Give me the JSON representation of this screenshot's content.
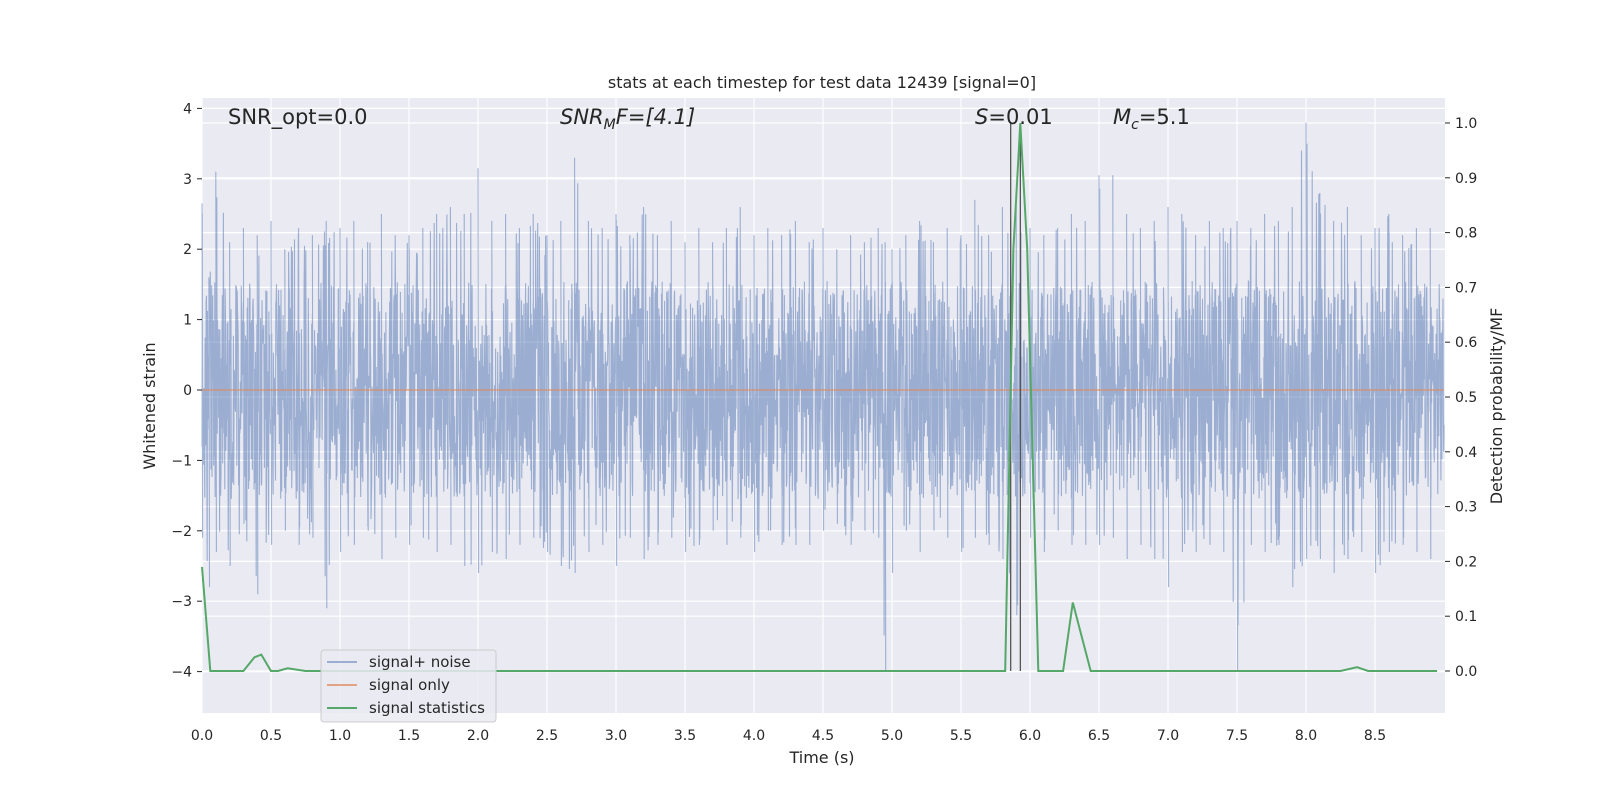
{
  "chart_data": {
    "type": "line",
    "title": "stats at each timestep for test data 12439 [signal=0]",
    "xlabel": "Time (s)",
    "ylabel": "Whitened strain",
    "y2label": "Detection probability/MF",
    "xlim": [
      0,
      9
    ],
    "ylim": [
      -4.4,
      4.2
    ],
    "y2lim": [
      -0.05,
      1.05
    ],
    "xticks": [
      "0.0",
      "0.5",
      "1.0",
      "1.5",
      "2.0",
      "2.5",
      "3.0",
      "3.5",
      "4.0",
      "4.5",
      "5.0",
      "5.5",
      "6.0",
      "6.5",
      "7.0",
      "7.5",
      "8.0",
      "8.5"
    ],
    "yticks": [
      "−4",
      "−3",
      "−2",
      "−1",
      "0",
      "1",
      "2",
      "3",
      "4"
    ],
    "y2ticks": [
      "0.0",
      "0.1",
      "0.2",
      "0.3",
      "0.4",
      "0.5",
      "0.6",
      "0.7",
      "0.8",
      "0.9",
      "1.0"
    ],
    "grid": true,
    "legend": {
      "position": "lower-left",
      "entries": [
        "signal+ noise",
        "signal only",
        "signal statistics"
      ]
    },
    "annotations": {
      "snr_opt": "SNR_opt=0.0",
      "snr_mf_main": "SNR",
      "snr_mf_sub": "M",
      "snr_mf_tail": "F=[4.1]",
      "s_main": "S",
      "s_value": "=0.01",
      "mc_main": "M",
      "mc_sub": "c",
      "mc_value": "=5.1"
    },
    "vlines": [
      5.86,
      5.93
    ],
    "series": [
      {
        "name": "signal+ noise",
        "color": "#4c72b0",
        "description_envelope": [
          [
            0.0,
            2.65,
            -2.1
          ],
          [
            0.05,
            1.6,
            -2.8
          ],
          [
            0.1,
            3.1,
            -2.3
          ],
          [
            0.2,
            2.1,
            -2.5
          ],
          [
            0.3,
            2.3,
            -1.9
          ],
          [
            0.4,
            2.2,
            -2.9
          ],
          [
            0.5,
            2.4,
            -2.2
          ],
          [
            0.6,
            2.0,
            -2.0
          ],
          [
            0.7,
            2.3,
            -2.2
          ],
          [
            0.8,
            2.2,
            -2.1
          ],
          [
            0.9,
            2.4,
            -3.1
          ],
          [
            1.0,
            2.3,
            -2.3
          ],
          [
            1.1,
            2.4,
            -2.2
          ],
          [
            1.2,
            2.1,
            -2.0
          ],
          [
            1.3,
            2.5,
            -2.4
          ],
          [
            1.4,
            2.2,
            -2.1
          ],
          [
            1.5,
            2.2,
            -2.2
          ],
          [
            1.6,
            2.3,
            -2.1
          ],
          [
            1.7,
            2.5,
            -2.3
          ],
          [
            1.8,
            2.6,
            -2.2
          ],
          [
            1.9,
            2.5,
            -2.5
          ],
          [
            2.0,
            3.15,
            -2.6
          ],
          [
            2.1,
            2.4,
            -2.3
          ],
          [
            2.2,
            2.5,
            -2.4
          ],
          [
            2.3,
            2.3,
            -2.2
          ],
          [
            2.4,
            2.5,
            -2.1
          ],
          [
            2.5,
            2.2,
            -2.3
          ],
          [
            2.6,
            2.4,
            -2.5
          ],
          [
            2.7,
            3.3,
            -2.6
          ],
          [
            2.8,
            2.4,
            -2.3
          ],
          [
            2.9,
            2.3,
            -2.2
          ],
          [
            3.0,
            2.5,
            -2.5
          ],
          [
            3.1,
            2.2,
            -2.1
          ],
          [
            3.2,
            2.6,
            -2.4
          ],
          [
            3.3,
            2.2,
            -2.2
          ],
          [
            3.4,
            2.4,
            -2.1
          ],
          [
            3.5,
            2.1,
            -2.3
          ],
          [
            3.6,
            2.3,
            -2.2
          ],
          [
            3.7,
            2.1,
            -2.0
          ],
          [
            3.8,
            2.3,
            -2.2
          ],
          [
            3.9,
            2.6,
            -2.1
          ],
          [
            4.0,
            2.2,
            -2.3
          ],
          [
            4.1,
            2.3,
            -2.0
          ],
          [
            4.2,
            2.2,
            -2.2
          ],
          [
            4.3,
            2.4,
            -2.2
          ],
          [
            4.4,
            2.1,
            -2.2
          ],
          [
            4.5,
            2.3,
            -2.0
          ],
          [
            4.6,
            2.0,
            -1.9
          ],
          [
            4.7,
            2.2,
            -2.2
          ],
          [
            4.8,
            2.1,
            -2.0
          ],
          [
            4.9,
            2.3,
            -2.1
          ],
          [
            4.95,
            2.1,
            -4.0
          ],
          [
            5.0,
            2.0,
            -2.6
          ],
          [
            5.1,
            2.2,
            -2.0
          ],
          [
            5.2,
            2.4,
            -2.3
          ],
          [
            5.3,
            2.1,
            -2.0
          ],
          [
            5.4,
            2.3,
            -2.1
          ],
          [
            5.5,
            2.2,
            -2.3
          ],
          [
            5.6,
            2.7,
            -2.1
          ],
          [
            5.7,
            2.2,
            -2.2
          ],
          [
            5.8,
            2.6,
            -2.4
          ],
          [
            5.9,
            2.6,
            -3.2
          ],
          [
            6.0,
            2.3,
            -2.1
          ],
          [
            6.1,
            2.2,
            -2.3
          ],
          [
            6.2,
            2.3,
            -2.0
          ],
          [
            6.3,
            2.5,
            -2.2
          ],
          [
            6.4,
            2.4,
            -2.2
          ],
          [
            6.5,
            3.05,
            -2.2
          ],
          [
            6.6,
            3.05,
            -2.1
          ],
          [
            6.7,
            2.5,
            -2.4
          ],
          [
            6.8,
            2.3,
            -2.2
          ],
          [
            6.9,
            2.4,
            -2.4
          ],
          [
            7.0,
            2.6,
            -2.8
          ],
          [
            7.1,
            2.5,
            -2.3
          ],
          [
            7.2,
            2.2,
            -2.3
          ],
          [
            7.3,
            2.4,
            -2.2
          ],
          [
            7.4,
            2.3,
            -2.3
          ],
          [
            7.5,
            2.4,
            -4.0
          ],
          [
            7.6,
            2.3,
            -2.2
          ],
          [
            7.7,
            2.5,
            -2.3
          ],
          [
            7.8,
            2.4,
            -2.2
          ],
          [
            7.9,
            2.6,
            -2.8
          ],
          [
            8.0,
            3.8,
            -2.4
          ],
          [
            8.1,
            2.8,
            -2.4
          ],
          [
            8.2,
            2.4,
            -2.6
          ],
          [
            8.3,
            2.6,
            -2.4
          ],
          [
            8.4,
            2.2,
            -2.3
          ],
          [
            8.5,
            2.3,
            -2.6
          ],
          [
            8.6,
            2.5,
            -2.3
          ],
          [
            8.7,
            2.2,
            -2.2
          ],
          [
            8.8,
            2.3,
            -2.3
          ],
          [
            8.9,
            2.3,
            -2.4
          ]
        ]
      },
      {
        "name": "signal only",
        "color": "#dd8452",
        "x": [
          0,
          9
        ],
        "y": [
          0,
          0
        ]
      },
      {
        "name": "signal statistics",
        "color": "#55a868",
        "axis": "right",
        "x": [
          0.0,
          0.06,
          0.12,
          0.3,
          0.38,
          0.43,
          0.5,
          0.55,
          0.62,
          0.75,
          1.0,
          2.0,
          3.0,
          4.0,
          5.0,
          5.6,
          5.82,
          5.88,
          5.93,
          5.98,
          6.06,
          6.24,
          6.31,
          6.44,
          7.0,
          8.0,
          8.25,
          8.37,
          8.45,
          8.95
        ],
        "y": [
          0.19,
          0.0,
          0.0,
          0.0,
          0.025,
          0.03,
          0.0,
          0.0,
          0.005,
          0.0,
          0.0,
          0.0,
          0.0,
          0.0,
          0.0,
          0.0,
          0.0,
          0.77,
          1.0,
          0.77,
          0.0,
          0.0,
          0.125,
          0.0,
          0.0,
          0.0,
          0.0,
          0.007,
          0.0,
          0.0
        ]
      }
    ]
  }
}
